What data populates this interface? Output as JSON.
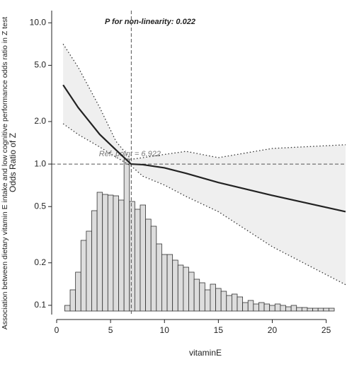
{
  "chart_data": {
    "type": "spline",
    "title": "P for non-linearity: 0.022",
    "annotation": "Ref. point = 6.922",
    "ref_x": 6.922,
    "ref_y": 1,
    "xlabel": "vitaminE",
    "ylabel": "Odds Ratio of Z",
    "outer_ylabel": "Association between dietary vitamin E intake and low cognitive performance odds ratio in Z test",
    "log_y": true,
    "xlim": [
      -0.46,
      26.8
    ],
    "ylim": [
      0.086,
      12.2
    ],
    "xticks": [
      0,
      5,
      10,
      15,
      20,
      25
    ],
    "yticks": [
      {
        "value": 10,
        "label": "10.0"
      },
      {
        "value": 5,
        "label": "5.0"
      },
      {
        "value": 2,
        "label": "2.0"
      },
      {
        "value": 1,
        "label": "1.0"
      },
      0.5,
      0.2,
      0.1
    ],
    "x": [
      0.6,
      2,
      4,
      5.5,
      6.9,
      8,
      10,
      12,
      15,
      20,
      26.8
    ],
    "series": [
      {
        "name": "OR",
        "color": "#222222",
        "values": [
          3.63,
          2.51,
          1.62,
          1.26,
          1.0,
          0.99,
          0.94,
          0.86,
          0.74,
          0.6,
          0.46
        ]
      },
      {
        "name": "upper",
        "color": "#333333",
        "values": [
          7.08,
          4.84,
          2.51,
          1.45,
          1.08,
          1.11,
          1.17,
          1.23,
          1.11,
          1.29,
          1.37
        ]
      },
      {
        "name": "lower",
        "color": "#333333",
        "values": [
          1.93,
          1.62,
          1.32,
          1.12,
          0.97,
          0.82,
          0.71,
          0.59,
          0.46,
          0.26,
          0.14
        ]
      }
    ],
    "band_color": "#efefef",
    "histogram": {
      "color": "#dddddd",
      "bins": [
        0.75,
        1.25,
        1.75,
        2.25,
        2.75,
        3.25,
        3.75,
        4.25,
        4.75,
        5.25,
        5.75,
        6.25,
        6.75,
        7.25,
        7.75,
        8.25,
        8.75,
        9.25,
        9.75,
        10.25,
        10.75,
        11.25,
        11.75,
        12.25,
        12.75,
        13.25,
        13.75,
        14.25,
        14.75,
        15.25,
        15.75,
        16.25,
        16.75,
        17.25,
        17.75,
        18.25,
        18.75,
        19.25,
        19.75,
        20.25,
        20.75,
        21.25,
        21.75,
        22.25,
        22.75,
        23.25,
        23.75,
        24.25,
        24.75,
        25.25,
        25.75
      ],
      "counts": [
        8,
        30,
        55,
        100,
        113,
        142,
        168,
        165,
        164,
        163,
        157,
        215,
        155,
        144,
        150,
        130,
        120,
        95,
        80,
        80,
        72,
        65,
        62,
        55,
        45,
        40,
        30,
        38,
        32,
        28,
        22,
        24,
        20,
        12,
        15,
        10,
        12,
        10,
        8,
        10,
        8,
        6,
        8,
        5,
        5,
        4,
        4,
        4,
        4,
        4
      ]
    }
  }
}
